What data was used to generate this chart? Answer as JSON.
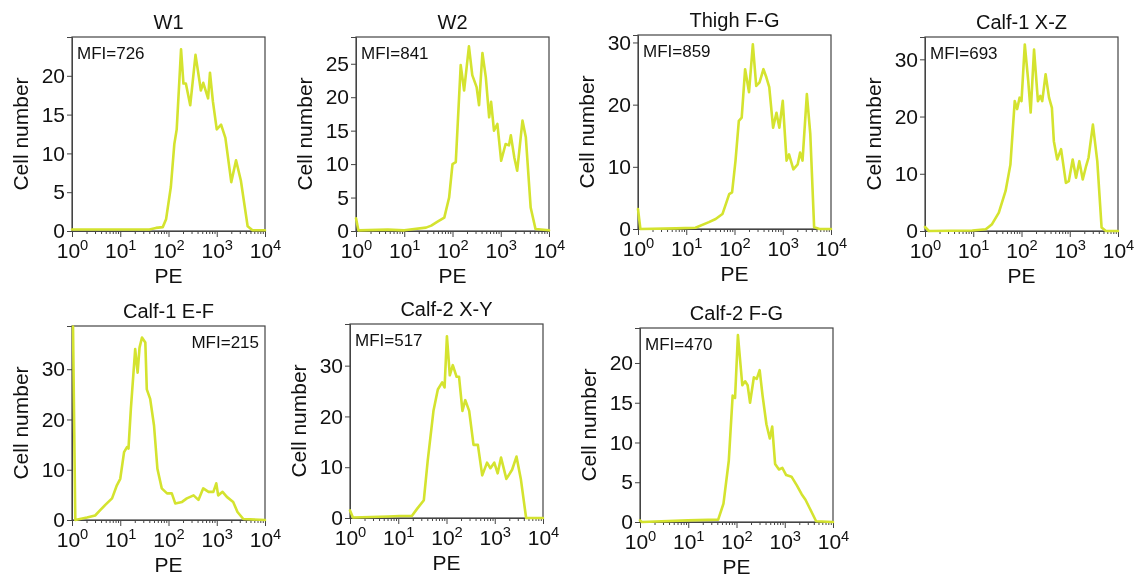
{
  "chart_data": [
    {
      "type": "line",
      "title": "W1",
      "xlabel": "PE",
      "ylabel": "Cell number",
      "log": "x",
      "color": "#d4e32f",
      "xlim": [
        1,
        10000
      ],
      "ylim": [
        0,
        25
      ],
      "yticks": [
        0,
        5,
        10,
        15,
        20
      ],
      "xticks": [
        {
          "value": 1,
          "label": "10$^{0}$"
        },
        {
          "value": 2,
          "label": null
        },
        {
          "value": 3,
          "label": null
        },
        {
          "value": 4,
          "label": null
        },
        {
          "value": 5,
          "label": null
        },
        {
          "value": 6,
          "label": null
        },
        {
          "value": 7,
          "label": null
        },
        {
          "value": 8,
          "label": null
        },
        {
          "value": 9,
          "label": null
        },
        {
          "value": 10,
          "label": "10$^{1}$"
        },
        {
          "value": 20,
          "label": null
        },
        {
          "value": 30,
          "label": null
        },
        {
          "value": 40,
          "label": null
        },
        {
          "value": 50,
          "label": null
        },
        {
          "value": 60,
          "label": null
        },
        {
          "value": 70,
          "label": null
        },
        {
          "value": 80,
          "label": null
        },
        {
          "value": 90,
          "label": null
        },
        {
          "value": 100,
          "label": "10$^{2}$"
        },
        {
          "value": 200,
          "label": null
        },
        {
          "value": 300,
          "label": null
        },
        {
          "value": 400,
          "label": null
        },
        {
          "value": 500,
          "label": null
        },
        {
          "value": 600,
          "label": null
        },
        {
          "value": 700,
          "label": null
        },
        {
          "value": 800,
          "label": null
        },
        {
          "value": 900,
          "label": null
        },
        {
          "value": 1000,
          "label": "10$^{3}$"
        },
        {
          "value": 2000,
          "label": null
        },
        {
          "value": 3000,
          "label": null
        },
        {
          "value": 4000,
          "label": null
        },
        {
          "value": 5000,
          "label": null
        },
        {
          "value": 6000,
          "label": null
        },
        {
          "value": 7000,
          "label": null
        },
        {
          "value": 8000,
          "label": null
        },
        {
          "value": 9000,
          "label": null
        },
        {
          "value": 10000,
          "label": "10$^{4}$"
        }
      ],
      "annotations": [
        "MFI=726"
      ],
      "x": [
        1,
        40,
        55,
        76,
        89,
        112,
        132,
        148,
        182,
        204,
        229,
        282,
        363,
        427,
        468,
        525,
        661,
        724,
        832,
        1000,
        1230,
        1510,
        2000,
        2510,
        3160,
        4370,
        5500,
        10000
      ],
      "values": [
        0.2,
        0.2,
        0.4,
        0.5,
        1.5,
        5.7,
        11.2,
        13.1,
        23.4,
        19,
        19,
        16.2,
        22.7,
        19.8,
        18.1,
        19.1,
        17.1,
        20.4,
        16.7,
        13.1,
        13.7,
        12,
        6.3,
        9.1,
        6.5,
        0.6,
        0.1,
        0.1
      ]
    },
    {
      "type": "line",
      "title": "W2",
      "xlabel": "PE",
      "ylabel": "Cell number",
      "log": "x",
      "color": "#d4e32f",
      "xlim": [
        1,
        10000
      ],
      "ylim": [
        0,
        29
      ],
      "yticks": [
        0,
        5,
        10,
        15,
        20,
        25
      ],
      "xticks": [
        {
          "value": 1,
          "label": "10$^{0}$"
        },
        {
          "value": 2,
          "label": null
        },
        {
          "value": 3,
          "label": null
        },
        {
          "value": 4,
          "label": null
        },
        {
          "value": 5,
          "label": null
        },
        {
          "value": 6,
          "label": null
        },
        {
          "value": 7,
          "label": null
        },
        {
          "value": 8,
          "label": null
        },
        {
          "value": 9,
          "label": null
        },
        {
          "value": 10,
          "label": "10$^{1}$"
        },
        {
          "value": 20,
          "label": null
        },
        {
          "value": 30,
          "label": null
        },
        {
          "value": 40,
          "label": null
        },
        {
          "value": 50,
          "label": null
        },
        {
          "value": 60,
          "label": null
        },
        {
          "value": 70,
          "label": null
        },
        {
          "value": 80,
          "label": null
        },
        {
          "value": 90,
          "label": null
        },
        {
          "value": 100,
          "label": "10$^{2}$"
        },
        {
          "value": 200,
          "label": null
        },
        {
          "value": 300,
          "label": null
        },
        {
          "value": 400,
          "label": null
        },
        {
          "value": 500,
          "label": null
        },
        {
          "value": 600,
          "label": null
        },
        {
          "value": 700,
          "label": null
        },
        {
          "value": 800,
          "label": null
        },
        {
          "value": 900,
          "label": null
        },
        {
          "value": 1000,
          "label": "10$^{3}$"
        },
        {
          "value": 2000,
          "label": null
        },
        {
          "value": 3000,
          "label": null
        },
        {
          "value": 4000,
          "label": null
        },
        {
          "value": 5000,
          "label": null
        },
        {
          "value": 6000,
          "label": null
        },
        {
          "value": 7000,
          "label": null
        },
        {
          "value": 8000,
          "label": null
        },
        {
          "value": 9000,
          "label": null
        },
        {
          "value": 10000,
          "label": "10$^{4}$"
        }
      ],
      "annotations": [
        "MFI=841"
      ],
      "x": [
        1,
        1.12,
        4.57,
        10,
        28.2,
        36.3,
        49,
        67.6,
        85.1,
        100,
        117,
        148,
        174,
        219,
        257,
        316,
        355,
        417,
        490,
        575,
        631,
        724,
        851,
        1020,
        1260,
        1480,
        1620,
        1910,
        2190,
        2820,
        3310,
        4170,
        5250,
        10000
      ],
      "values": [
        1.9,
        0.1,
        0.2,
        0.1,
        0.5,
        0.8,
        1.4,
        2,
        5,
        10,
        10.3,
        24.8,
        21,
        27.6,
        23.3,
        21.5,
        18.8,
        26.6,
        23,
        17,
        19.3,
        15,
        16,
        10.5,
        13,
        12.8,
        14.3,
        11,
        9,
        16.5,
        14,
        3.5,
        0.3,
        0.1
      ]
    },
    {
      "type": "line",
      "title": "Thigh F-G",
      "xlabel": "PE",
      "ylabel": "Cell number",
      "log": "x",
      "color": "#d4e32f",
      "xlim": [
        1,
        10000
      ],
      "ylim": [
        0,
        31.2
      ],
      "yticks": [
        0,
        10,
        20,
        30
      ],
      "xticks": [
        {
          "value": 1,
          "label": "10$^{0}$"
        },
        {
          "value": 2,
          "label": null
        },
        {
          "value": 3,
          "label": null
        },
        {
          "value": 4,
          "label": null
        },
        {
          "value": 5,
          "label": null
        },
        {
          "value": 6,
          "label": null
        },
        {
          "value": 7,
          "label": null
        },
        {
          "value": 8,
          "label": null
        },
        {
          "value": 9,
          "label": null
        },
        {
          "value": 10,
          "label": "10$^{1}$"
        },
        {
          "value": 20,
          "label": null
        },
        {
          "value": 30,
          "label": null
        },
        {
          "value": 40,
          "label": null
        },
        {
          "value": 50,
          "label": null
        },
        {
          "value": 60,
          "label": null
        },
        {
          "value": 70,
          "label": null
        },
        {
          "value": 80,
          "label": null
        },
        {
          "value": 90,
          "label": null
        },
        {
          "value": 100,
          "label": "10$^{2}$"
        },
        {
          "value": 200,
          "label": null
        },
        {
          "value": 300,
          "label": null
        },
        {
          "value": 400,
          "label": null
        },
        {
          "value": 500,
          "label": null
        },
        {
          "value": 600,
          "label": null
        },
        {
          "value": 700,
          "label": null
        },
        {
          "value": 800,
          "label": null
        },
        {
          "value": 900,
          "label": null
        },
        {
          "value": 1000,
          "label": "10$^{3}$"
        },
        {
          "value": 2000,
          "label": null
        },
        {
          "value": 3000,
          "label": null
        },
        {
          "value": 4000,
          "label": null
        },
        {
          "value": 5000,
          "label": null
        },
        {
          "value": 6000,
          "label": null
        },
        {
          "value": 7000,
          "label": null
        },
        {
          "value": 8000,
          "label": null
        },
        {
          "value": 9000,
          "label": null
        },
        {
          "value": 10000,
          "label": "10$^{4}$"
        }
      ],
      "annotations": [
        "MFI=859"
      ],
      "x": [
        1,
        1.12,
        6.03,
        15.5,
        29.5,
        40.7,
        56.2,
        66.1,
        77.6,
        89.1,
        105,
        123,
        141,
        166,
        200,
        240,
        282,
        331,
        398,
        457,
        525,
        631,
        741,
        851,
        1000,
        1200,
        1350,
        1660,
        2040,
        2290,
        2570,
        3160,
        3720,
        4470,
        5750,
        10000
      ],
      "values": [
        3.2,
        0,
        0.1,
        0.2,
        1.1,
        1.6,
        2.4,
        4,
        5.6,
        5.9,
        11,
        17.4,
        17.9,
        25.7,
        22,
        29.7,
        23,
        23.6,
        25.7,
        24.4,
        22.8,
        16.3,
        18.7,
        16.3,
        20.6,
        11,
        12,
        9.6,
        10.4,
        12.3,
        11,
        21.7,
        15.3,
        0.3,
        0,
        0
      ]
    },
    {
      "type": "line",
      "title": "Calf-1 X-Z",
      "xlabel": "PE",
      "ylabel": "Cell number",
      "log": "x",
      "color": "#d4e32f",
      "xlim": [
        1,
        10000
      ],
      "ylim": [
        0,
        33.9
      ],
      "yticks": [
        0,
        10,
        20,
        30
      ],
      "xticks": [
        {
          "value": 1,
          "label": "10$^{0}$"
        },
        {
          "value": 2,
          "label": null
        },
        {
          "value": 3,
          "label": null
        },
        {
          "value": 4,
          "label": null
        },
        {
          "value": 5,
          "label": null
        },
        {
          "value": 6,
          "label": null
        },
        {
          "value": 7,
          "label": null
        },
        {
          "value": 8,
          "label": null
        },
        {
          "value": 9,
          "label": null
        },
        {
          "value": 10,
          "label": "10$^{1}$"
        },
        {
          "value": 20,
          "label": null
        },
        {
          "value": 30,
          "label": null
        },
        {
          "value": 40,
          "label": null
        },
        {
          "value": 50,
          "label": null
        },
        {
          "value": 60,
          "label": null
        },
        {
          "value": 70,
          "label": null
        },
        {
          "value": 80,
          "label": null
        },
        {
          "value": 90,
          "label": null
        },
        {
          "value": 100,
          "label": "10$^{2}$"
        },
        {
          "value": 200,
          "label": null
        },
        {
          "value": 300,
          "label": null
        },
        {
          "value": 400,
          "label": null
        },
        {
          "value": 500,
          "label": null
        },
        {
          "value": 600,
          "label": null
        },
        {
          "value": 700,
          "label": null
        },
        {
          "value": 800,
          "label": null
        },
        {
          "value": 900,
          "label": null
        },
        {
          "value": 1000,
          "label": "10$^{3}$"
        },
        {
          "value": 2000,
          "label": null
        },
        {
          "value": 3000,
          "label": null
        },
        {
          "value": 4000,
          "label": null
        },
        {
          "value": 5000,
          "label": null
        },
        {
          "value": 6000,
          "label": null
        },
        {
          "value": 7000,
          "label": null
        },
        {
          "value": 8000,
          "label": null
        },
        {
          "value": 9000,
          "label": null
        },
        {
          "value": 10000,
          "label": "10$^{4}$"
        }
      ],
      "annotations": [
        "MFI=693"
      ],
      "x": [
        1,
        1.2,
        9.55,
        18.2,
        24.5,
        33.9,
        46.8,
        58.9,
        72.4,
        81.3,
        91.2,
        100,
        117,
        138,
        155,
        182,
        219,
        245,
        269,
        316,
        372,
        427,
        468,
        550,
        661,
        832,
        955,
        1150,
        1350,
        1580,
        1860,
        2190,
        2450,
        3020,
        3720,
        4570,
        5620,
        10000
      ],
      "values": [
        0.7,
        0,
        0.1,
        0.3,
        1.2,
        3.2,
        7,
        11.6,
        22.7,
        21.3,
        23.3,
        22.7,
        32.6,
        26.2,
        20.7,
        31.7,
        22.7,
        23.6,
        22.7,
        27.4,
        23.3,
        21.5,
        15.7,
        12.5,
        14.3,
        8.4,
        8.7,
        12.5,
        9.3,
        12.2,
        9,
        11.4,
        12.8,
        18.6,
        12.2,
        0.6,
        0,
        0
      ]
    },
    {
      "type": "line",
      "title": "Calf-1 E-F",
      "xlabel": "PE",
      "ylabel": "Cell number",
      "log": "x",
      "color": "#d4e32f",
      "xlim": [
        1,
        10000
      ],
      "ylim": [
        0,
        38.6
      ],
      "yticks": [
        0,
        10,
        20,
        30
      ],
      "xticks": [
        {
          "value": 1,
          "label": "10$^{0}$"
        },
        {
          "value": 2,
          "label": null
        },
        {
          "value": 3,
          "label": null
        },
        {
          "value": 4,
          "label": null
        },
        {
          "value": 5,
          "label": null
        },
        {
          "value": 6,
          "label": null
        },
        {
          "value": 7,
          "label": null
        },
        {
          "value": 8,
          "label": null
        },
        {
          "value": 9,
          "label": null
        },
        {
          "value": 10,
          "label": "10$^{1}$"
        },
        {
          "value": 20,
          "label": null
        },
        {
          "value": 30,
          "label": null
        },
        {
          "value": 40,
          "label": null
        },
        {
          "value": 50,
          "label": null
        },
        {
          "value": 60,
          "label": null
        },
        {
          "value": 70,
          "label": null
        },
        {
          "value": 80,
          "label": null
        },
        {
          "value": 90,
          "label": null
        },
        {
          "value": 100,
          "label": "10$^{2}$"
        },
        {
          "value": 200,
          "label": null
        },
        {
          "value": 300,
          "label": null
        },
        {
          "value": 400,
          "label": null
        },
        {
          "value": 500,
          "label": null
        },
        {
          "value": 600,
          "label": null
        },
        {
          "value": 700,
          "label": null
        },
        {
          "value": 800,
          "label": null
        },
        {
          "value": 900,
          "label": null
        },
        {
          "value": 1000,
          "label": "10$^{3}$"
        },
        {
          "value": 2000,
          "label": null
        },
        {
          "value": 3000,
          "label": null
        },
        {
          "value": 4000,
          "label": null
        },
        {
          "value": 5000,
          "label": null
        },
        {
          "value": 6000,
          "label": null
        },
        {
          "value": 7000,
          "label": null
        },
        {
          "value": 8000,
          "label": null
        },
        {
          "value": 9000,
          "label": null
        },
        {
          "value": 10000,
          "label": "10$^{4}$"
        }
      ],
      "annotations": [
        "MFI=215"
      ],
      "x": [
        1.05,
        1.17,
        2.04,
        3.02,
        3.89,
        4.9,
        6.76,
        8.51,
        10,
        12,
        13.8,
        14.8,
        16.6,
        20.4,
        22.9,
        25.1,
        28.2,
        33.1,
        35.5,
        41.7,
        50.1,
        58.9,
        72.4,
        93.3,
        117,
        138,
        191,
        240,
        331,
        417,
        525,
        676,
        851,
        977,
        1070,
        1320,
        1620,
        2190,
        2690,
        3550,
        10000
      ],
      "values": [
        38.5,
        0,
        0.5,
        0.9,
        2,
        3,
        4.3,
        6.9,
        8.2,
        13.5,
        14.5,
        14.2,
        22.1,
        34,
        29.3,
        34.3,
        36.3,
        35.3,
        26,
        24.1,
        18.8,
        10.2,
        6.3,
        5.3,
        5.3,
        3.3,
        3.6,
        4.3,
        4.9,
        4,
        6.3,
        5.6,
        5.6,
        7.3,
        4.9,
        5.6,
        4.6,
        3.6,
        1.6,
        0.2,
        0
      ]
    },
    {
      "type": "line",
      "title": "Calf-2 X-Y",
      "xlabel": "PE",
      "ylabel": "Cell number",
      "log": "x",
      "color": "#d4e32f",
      "xlim": [
        1,
        10000
      ],
      "ylim": [
        0,
        38.2
      ],
      "yticks": [
        0,
        10,
        20,
        30
      ],
      "xticks": [
        {
          "value": 1,
          "label": "10$^{0}$"
        },
        {
          "value": 2,
          "label": null
        },
        {
          "value": 3,
          "label": null
        },
        {
          "value": 4,
          "label": null
        },
        {
          "value": 5,
          "label": null
        },
        {
          "value": 6,
          "label": null
        },
        {
          "value": 7,
          "label": null
        },
        {
          "value": 8,
          "label": null
        },
        {
          "value": 9,
          "label": null
        },
        {
          "value": 10,
          "label": "10$^{1}$"
        },
        {
          "value": 20,
          "label": null
        },
        {
          "value": 30,
          "label": null
        },
        {
          "value": 40,
          "label": null
        },
        {
          "value": 50,
          "label": null
        },
        {
          "value": 60,
          "label": null
        },
        {
          "value": 70,
          "label": null
        },
        {
          "value": 80,
          "label": null
        },
        {
          "value": 90,
          "label": null
        },
        {
          "value": 100,
          "label": "10$^{2}$"
        },
        {
          "value": 200,
          "label": null
        },
        {
          "value": 300,
          "label": null
        },
        {
          "value": 400,
          "label": null
        },
        {
          "value": 500,
          "label": null
        },
        {
          "value": 600,
          "label": null
        },
        {
          "value": 700,
          "label": null
        },
        {
          "value": 800,
          "label": null
        },
        {
          "value": 900,
          "label": null
        },
        {
          "value": 1000,
          "label": "10$^{3}$"
        },
        {
          "value": 2000,
          "label": null
        },
        {
          "value": 3000,
          "label": null
        },
        {
          "value": 4000,
          "label": null
        },
        {
          "value": 5000,
          "label": null
        },
        {
          "value": 6000,
          "label": null
        },
        {
          "value": 7000,
          "label": null
        },
        {
          "value": 8000,
          "label": null
        },
        {
          "value": 9000,
          "label": null
        },
        {
          "value": 10000,
          "label": "10$^{4}$"
        }
      ],
      "annotations": [
        "MFI=517"
      ],
      "x": [
        1,
        1.15,
        6.31,
        10.5,
        19.1,
        24.5,
        33.9,
        40.7,
        53.7,
        66.1,
        81.3,
        91.2,
        102,
        117,
        135,
        162,
        182,
        214,
        245,
        295,
        363,
        447,
        550,
        692,
        813,
        977,
        1150,
        1350,
        1740,
        2290,
        2820,
        3470,
        4470,
        10000
      ],
      "values": [
        1.5,
        0.1,
        0.3,
        0.4,
        0.4,
        1.8,
        3.5,
        11.2,
        21.1,
        25.3,
        26.7,
        25.7,
        35.8,
        28.1,
        30.1,
        27.8,
        27.8,
        21.1,
        23.2,
        21.1,
        14.4,
        14.4,
        8.4,
        10.9,
        9.8,
        10.9,
        8.8,
        11.9,
        7.7,
        9.5,
        12.1,
        7.7,
        0,
        0
      ]
    },
    {
      "type": "line",
      "title": "Calf-2 F-G",
      "xlabel": "PE",
      "ylabel": "Cell number",
      "log": "x",
      "color": "#d4e32f",
      "xlim": [
        1,
        10000
      ],
      "ylim": [
        0,
        24.4
      ],
      "yticks": [
        0,
        5,
        10,
        15,
        20
      ],
      "xticks": [
        {
          "value": 1,
          "label": "10$^{0}$"
        },
        {
          "value": 2,
          "label": null
        },
        {
          "value": 3,
          "label": null
        },
        {
          "value": 4,
          "label": null
        },
        {
          "value": 5,
          "label": null
        },
        {
          "value": 6,
          "label": null
        },
        {
          "value": 7,
          "label": null
        },
        {
          "value": 8,
          "label": null
        },
        {
          "value": 9,
          "label": null
        },
        {
          "value": 10,
          "label": "10$^{1}$"
        },
        {
          "value": 20,
          "label": null
        },
        {
          "value": 30,
          "label": null
        },
        {
          "value": 40,
          "label": null
        },
        {
          "value": 50,
          "label": null
        },
        {
          "value": 60,
          "label": null
        },
        {
          "value": 70,
          "label": null
        },
        {
          "value": 80,
          "label": null
        },
        {
          "value": 90,
          "label": null
        },
        {
          "value": 100,
          "label": "10$^{2}$"
        },
        {
          "value": 200,
          "label": null
        },
        {
          "value": 300,
          "label": null
        },
        {
          "value": 400,
          "label": null
        },
        {
          "value": 500,
          "label": null
        },
        {
          "value": 600,
          "label": null
        },
        {
          "value": 700,
          "label": null
        },
        {
          "value": 800,
          "label": null
        },
        {
          "value": 900,
          "label": null
        },
        {
          "value": 1000,
          "label": "10$^{3}$"
        },
        {
          "value": 2000,
          "label": null
        },
        {
          "value": 3000,
          "label": null
        },
        {
          "value": 4000,
          "label": null
        },
        {
          "value": 5000,
          "label": null
        },
        {
          "value": 6000,
          "label": null
        },
        {
          "value": 7000,
          "label": null
        },
        {
          "value": 8000,
          "label": null
        },
        {
          "value": 9000,
          "label": null
        },
        {
          "value": 10000,
          "label": "10$^{4}$"
        }
      ],
      "annotations": [
        "MFI=470"
      ],
      "x": [
        1,
        1.1,
        9.77,
        41.7,
        53.7,
        69.2,
        83.2,
        93.3,
        107,
        132,
        151,
        170,
        191,
        229,
        263,
        302,
        347,
        417,
        490,
        550,
        631,
        759,
        891,
        1070,
        1380,
        1780,
        2240,
        2690,
        3310,
        4470,
        10000
      ],
      "values": [
        0.2,
        0,
        0.2,
        0.3,
        2.3,
        7.7,
        15.9,
        15.6,
        23.5,
        17.2,
        17.7,
        17.2,
        15,
        18.2,
        18,
        19.1,
        15.9,
        12.3,
        10.5,
        12,
        7.3,
        6.6,
        6.8,
        5.9,
        5.7,
        4.6,
        3.5,
        2.8,
        1.7,
        0.1,
        0
      ]
    }
  ]
}
